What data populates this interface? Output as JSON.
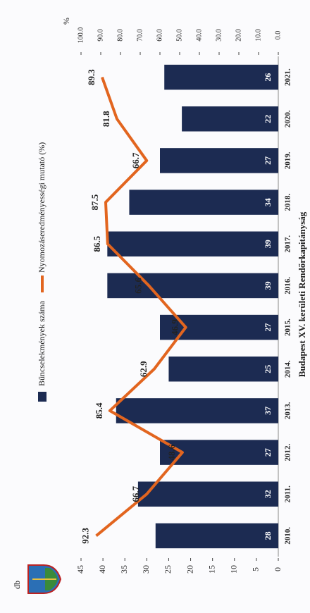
{
  "chart_data": {
    "type": "bar",
    "title": "Budapest XV. kerületi Rendőrkapitányság",
    "y_label": "db",
    "y2_label": "%",
    "categories": [
      "2010.",
      "2011.",
      "2012.",
      "2013.",
      "2014.",
      "2015.",
      "2016.",
      "2017.",
      "2018.",
      "2019.",
      "2020.",
      "2021."
    ],
    "series": [
      {
        "name": "Bűncselekmények száma",
        "type": "bar",
        "color": "#1c2b52",
        "values": [
          28,
          32,
          27,
          37,
          25,
          27,
          39,
          39,
          34,
          27,
          22,
          26
        ]
      },
      {
        "name": "Nyomozáseredményességi mutató (%)",
        "type": "line",
        "axis": "y2",
        "color": "#e2651f",
        "values": [
          92.3,
          66.7,
          48.6,
          85.4,
          62.9,
          46.9,
          65.6,
          86.5,
          87.5,
          66.7,
          81.8,
          89.3
        ]
      }
    ],
    "ylim": [
      0,
      45
    ],
    "yticks": [
      0,
      5,
      10,
      15,
      20,
      25,
      30,
      35,
      40,
      45
    ],
    "y2lim": [
      0,
      100
    ],
    "y2ticks": [
      {
        "value": 0,
        "label": "0.0"
      },
      {
        "value": 10,
        "label": "10.0"
      },
      {
        "value": 20,
        "label": "20.0"
      },
      {
        "value": 30,
        "label": "30.0"
      },
      {
        "value": 40,
        "label": "40.0"
      },
      {
        "value": 50,
        "label": "50.0"
      },
      {
        "value": 60,
        "label": "60.0"
      },
      {
        "value": 70,
        "label": "70.0"
      },
      {
        "value": 80,
        "label": "80.0"
      },
      {
        "value": 90,
        "label": "90.0"
      },
      {
        "value": 100,
        "label": "100.0"
      }
    ]
  }
}
